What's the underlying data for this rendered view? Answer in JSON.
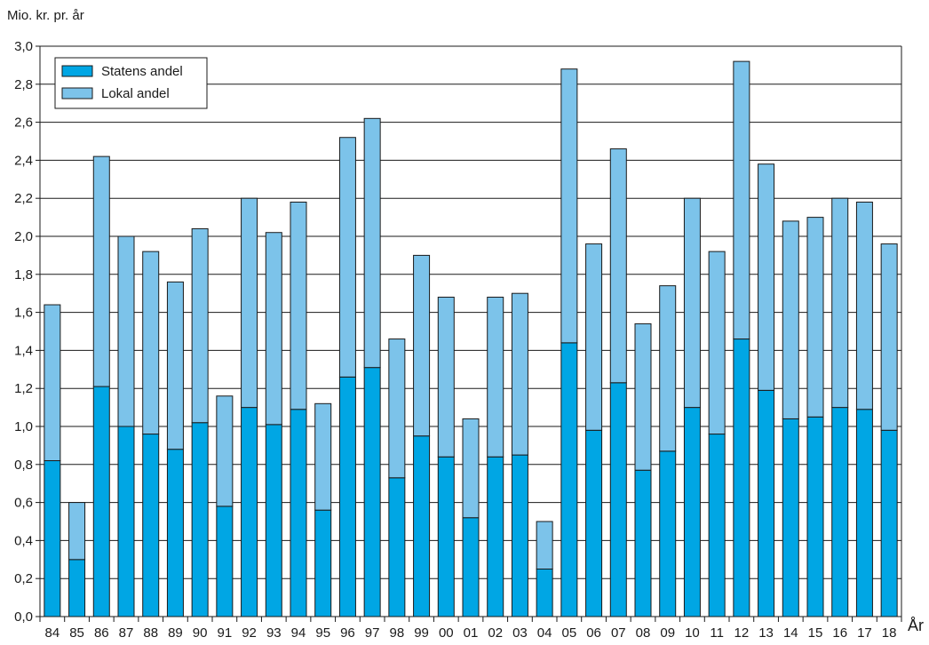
{
  "chart_data": {
    "type": "bar",
    "stacked": true,
    "ylabel": "Mio. kr. pr. år",
    "xlabel": "År",
    "ylim": [
      0,
      3.0
    ],
    "ytick_step": 0.2,
    "ytick_labels": [
      "0,0",
      "0,2",
      "0,4",
      "0,6",
      "0,8",
      "1,0",
      "1,2",
      "1,4",
      "1,6",
      "1,8",
      "2,0",
      "2,2",
      "2,4",
      "2,6",
      "2,8",
      "3,0"
    ],
    "grid": true,
    "legend_position": "top-left",
    "categories": [
      "84",
      "85",
      "86",
      "87",
      "88",
      "89",
      "90",
      "91",
      "92",
      "93",
      "94",
      "95",
      "96",
      "97",
      "98",
      "99",
      "00",
      "01",
      "02",
      "03",
      "04",
      "05",
      "06",
      "07",
      "08",
      "09",
      "10",
      "11",
      "12",
      "13",
      "14",
      "15",
      "16",
      "17",
      "18"
    ],
    "series": [
      {
        "name": "Statens andel",
        "color": "#00a6e4",
        "values": [
          0.82,
          0.3,
          1.21,
          1.0,
          0.96,
          0.88,
          1.02,
          0.58,
          1.1,
          1.01,
          1.09,
          0.56,
          1.26,
          1.31,
          0.73,
          0.95,
          0.84,
          0.52,
          0.84,
          0.85,
          0.25,
          1.44,
          0.98,
          1.23,
          0.77,
          0.87,
          1.1,
          0.96,
          1.46,
          1.19,
          1.04,
          1.05,
          1.1,
          1.09,
          0.98
        ]
      },
      {
        "name": "Lokal andel",
        "color": "#7cc3ea",
        "values": [
          0.82,
          0.3,
          1.21,
          1.0,
          0.96,
          0.88,
          1.02,
          0.58,
          1.1,
          1.01,
          1.09,
          0.56,
          1.26,
          1.31,
          0.73,
          0.95,
          0.84,
          0.52,
          0.84,
          0.85,
          0.25,
          1.44,
          0.98,
          1.23,
          0.77,
          0.87,
          1.1,
          0.96,
          1.46,
          1.19,
          1.04,
          1.05,
          1.1,
          1.09,
          0.98
        ]
      }
    ]
  }
}
